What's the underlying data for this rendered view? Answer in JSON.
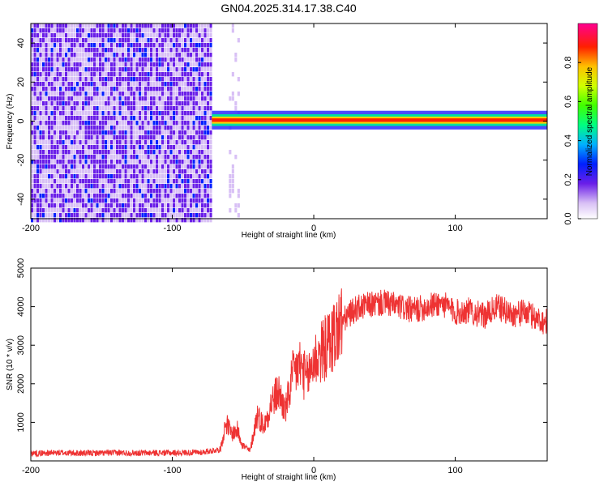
{
  "title": "GN04.2025.314.17.38.C40",
  "chart_data": [
    {
      "type": "heatmap",
      "xlabel": "Height of straight line (km)",
      "ylabel": "Frequency (Hz)",
      "xlim": [
        -200,
        165
      ],
      "ylim": [
        -50,
        50
      ],
      "x_ticks": [
        -200,
        -100,
        0,
        100
      ],
      "y_ticks": [
        -40,
        -20,
        0,
        20,
        40
      ],
      "colorbar": {
        "label": "Normalized spectral amplitude",
        "range": [
          0,
          1
        ],
        "ticks": [
          "0.0",
          "0.2",
          "0.4",
          "0.6",
          "0.8"
        ]
      },
      "regions": [
        {
          "x_start": -200,
          "x_end": -72,
          "description_level": "noise",
          "freq_range": [
            -50,
            50
          ],
          "amplitude": 0.15
        },
        {
          "x_start": -60,
          "x_end": -52,
          "description_level": "noise",
          "freq_range": [
            -50,
            50
          ],
          "amplitude": 0.08
        },
        {
          "x_start": -72,
          "x_end": 165,
          "freq_center": 0.5,
          "freq_halfwidth": 3,
          "amplitude": 0.95
        }
      ]
    },
    {
      "type": "line",
      "xlabel": "Height of straight line (km)",
      "ylabel": "SNR (10 * v/v)",
      "xlim": [
        -200,
        165
      ],
      "ylim": [
        0,
        5000
      ],
      "x_ticks": [
        -200,
        -100,
        0,
        100
      ],
      "y_ticks": [
        1000,
        2000,
        3000,
        4000,
        5000
      ],
      "series": [
        {
          "color": "#ee3333",
          "x": [
            -200,
            -180,
            -160,
            -140,
            -120,
            -100,
            -80,
            -66,
            -62,
            -58,
            -54,
            -50,
            -45,
            -40,
            -35,
            -30,
            -25,
            -20,
            -15,
            -10,
            -5,
            0,
            5,
            10,
            15,
            20,
            25,
            30,
            40,
            50,
            60,
            70,
            80,
            90,
            100,
            110,
            120,
            130,
            140,
            150,
            160,
            165
          ],
          "y": [
            200,
            210,
            200,
            210,
            205,
            210,
            220,
            300,
            1000,
            700,
            800,
            400,
            250,
            1200,
            900,
            1500,
            1800,
            1300,
            2200,
            2500,
            2100,
            2600,
            2800,
            3000,
            3300,
            3600,
            3800,
            3950,
            4050,
            4100,
            4000,
            3900,
            4000,
            4100,
            3850,
            3900,
            3750,
            4000,
            3800,
            3850,
            3650,
            3600
          ]
        }
      ]
    }
  ]
}
